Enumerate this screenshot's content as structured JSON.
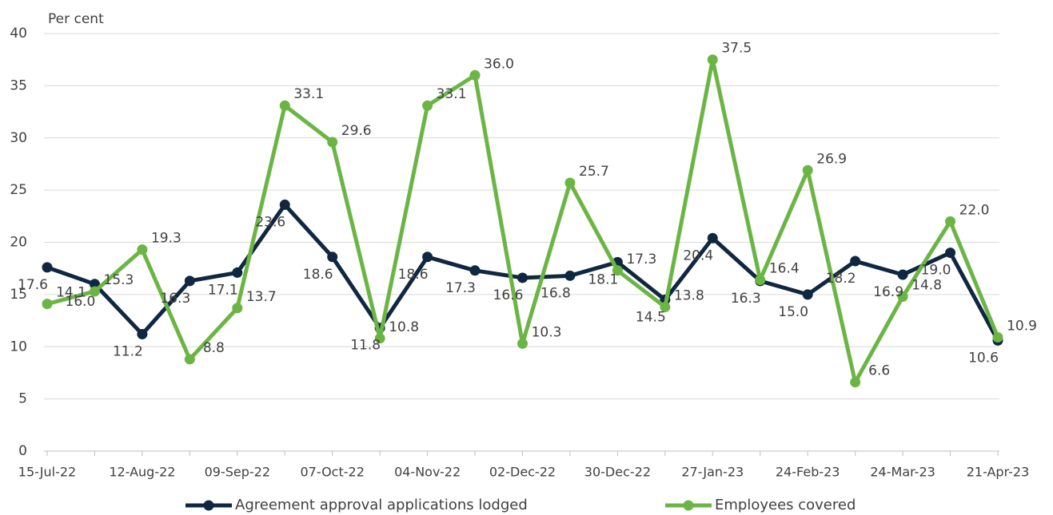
{
  "chart_data": {
    "type": "line",
    "y_label": "Per cent",
    "categories": [
      "15-Jul-22",
      null,
      "12-Aug-22",
      null,
      "09-Sep-22",
      null,
      "07-Oct-22",
      null,
      "04-Nov-22",
      null,
      "02-Dec-22",
      null,
      "30-Dec-22",
      null,
      "27-Jan-23",
      null,
      "24-Feb-23",
      null,
      "24-Mar-23",
      null,
      "21-Apr-23"
    ],
    "series": [
      {
        "name": "Agreement approval applications lodged",
        "color": "#0f2740",
        "values": [
          17.6,
          16.0,
          11.2,
          16.3,
          17.1,
          23.6,
          18.6,
          11.8,
          18.6,
          17.3,
          16.6,
          16.8,
          18.1,
          14.5,
          20.4,
          16.3,
          15.0,
          18.2,
          16.9,
          19.0,
          10.6
        ],
        "value_labels": [
          "17.6",
          "16.0",
          "11.2",
          "16.3",
          "17.1",
          "23.6",
          "18.6",
          "11.8",
          "18.6",
          "17.3",
          "16.6",
          "16.8",
          "18.1",
          "14.5",
          "20.4",
          "16.3",
          "15.0",
          "18.2",
          "16.9",
          "19.0",
          "10.6"
        ]
      },
      {
        "name": "Employees covered",
        "color": "#6bb545",
        "values": [
          14.1,
          15.3,
          19.3,
          8.8,
          13.7,
          33.1,
          29.6,
          10.8,
          33.1,
          36.0,
          10.3,
          25.7,
          17.3,
          13.8,
          37.5,
          16.4,
          26.9,
          6.6,
          14.8,
          22.0,
          10.9
        ],
        "value_labels": [
          "14.1",
          "15.3",
          "19.3",
          "8.8",
          "13.7",
          "33.1",
          "29.6",
          "10.8",
          "33.1",
          "36.0",
          "10.3",
          "25.7",
          "17.3",
          "13.8",
          "37.5",
          "16.4",
          "26.9",
          "6.6",
          "14.8",
          "22.0",
          "10.9"
        ]
      }
    ],
    "ylim": [
      0,
      40
    ],
    "yticks": [
      0,
      5,
      10,
      15,
      20,
      25,
      30,
      35,
      40
    ],
    "grid": true,
    "legend": "bottom"
  }
}
